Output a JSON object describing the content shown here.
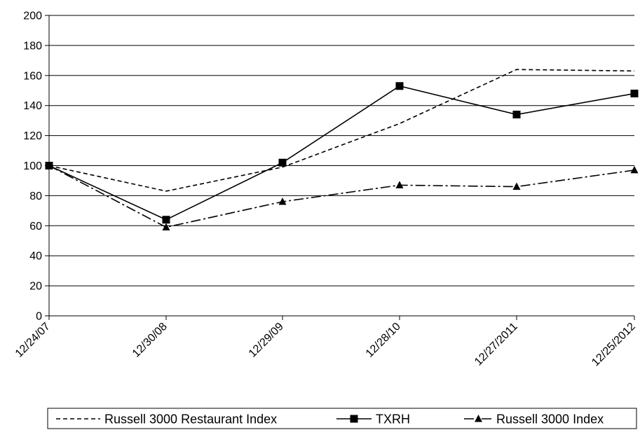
{
  "chart_data": {
    "type": "line",
    "title": "",
    "xlabel": "",
    "ylabel": "",
    "categories": [
      "12/24/07",
      "12/30/08",
      "12/29/09",
      "12/28/10",
      "12/27/2011",
      "12/25/2012"
    ],
    "ylim": [
      0,
      200
    ],
    "yticks": [
      0,
      20,
      40,
      60,
      80,
      100,
      120,
      140,
      160,
      180,
      200
    ],
    "grid": "horizontal",
    "legend_position": "bottom",
    "series": [
      {
        "name": "Russell 3000 Restaurant Index",
        "values": [
          100,
          83,
          99,
          128,
          164,
          163
        ],
        "color": "#000000",
        "dash": "dashed",
        "marker": "none"
      },
      {
        "name": "TXRH",
        "values": [
          100,
          64,
          102,
          153,
          134,
          148
        ],
        "color": "#000000",
        "dash": "solid",
        "marker": "square"
      },
      {
        "name": "Russell 3000 Index",
        "values": [
          100,
          59,
          76,
          87,
          86,
          97
        ],
        "color": "#000000",
        "dash": "dashdot",
        "marker": "triangle"
      }
    ]
  }
}
